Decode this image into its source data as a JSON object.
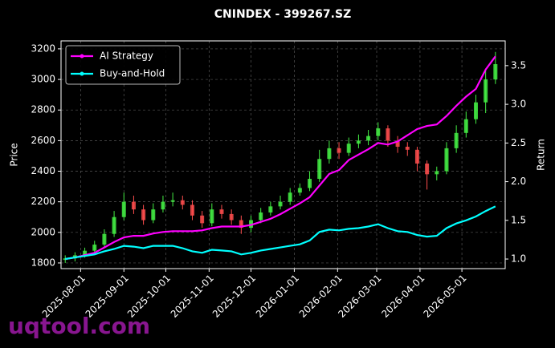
{
  "chart_data": {
    "type": "candlestick",
    "title": "CNINDEX - 399267.SZ",
    "ylabel": "Price",
    "y2label": "Return",
    "watermark": "uqtool.com",
    "x": [
      "2025-07-21",
      "2025-07-28",
      "2025-08-04",
      "2025-08-11",
      "2025-08-18",
      "2025-08-25",
      "2025-09-01",
      "2025-09-08",
      "2025-09-15",
      "2025-09-22",
      "2025-09-29",
      "2025-10-06",
      "2025-10-13",
      "2025-10-20",
      "2025-10-27",
      "2025-11-03",
      "2025-11-10",
      "2025-11-17",
      "2025-11-24",
      "2025-12-01",
      "2025-12-08",
      "2025-12-15",
      "2025-12-22",
      "2025-12-29",
      "2026-01-05",
      "2026-01-12",
      "2026-01-19",
      "2026-01-26",
      "2026-02-02",
      "2026-02-09",
      "2026-02-16",
      "2026-02-23",
      "2026-03-02",
      "2026-03-09",
      "2026-03-16",
      "2026-03-23",
      "2026-03-30",
      "2026-04-06",
      "2026-04-13",
      "2026-04-20",
      "2026-04-27",
      "2026-05-04",
      "2026-05-11",
      "2026-05-18",
      "2026-05-25"
    ],
    "open": [
      1820,
      1830,
      1850,
      1880,
      1920,
      1990,
      2100,
      2200,
      2150,
      2080,
      2150,
      2200,
      2210,
      2180,
      2110,
      2060,
      2150,
      2120,
      2080,
      2030,
      2080,
      2130,
      2170,
      2200,
      2260,
      2290,
      2350,
      2480,
      2550,
      2520,
      2580,
      2600,
      2630,
      2680,
      2600,
      2560,
      2540,
      2450,
      2380,
      2400,
      2550,
      2650,
      2740,
      2850,
      3000
    ],
    "high": [
      1850,
      1870,
      1900,
      1945,
      2020,
      2140,
      2260,
      2240,
      2180,
      2190,
      2240,
      2260,
      2240,
      2210,
      2140,
      2190,
      2180,
      2150,
      2110,
      2110,
      2160,
      2200,
      2240,
      2290,
      2320,
      2400,
      2540,
      2600,
      2590,
      2620,
      2640,
      2670,
      2720,
      2700,
      2630,
      2590,
      2560,
      2470,
      2430,
      2590,
      2700,
      2790,
      2900,
      3060,
      3180
    ],
    "low": [
      1800,
      1810,
      1835,
      1860,
      1900,
      1970,
      2080,
      2120,
      2050,
      2060,
      2130,
      2170,
      2150,
      2080,
      2030,
      2040,
      2090,
      2050,
      1990,
      2000,
      2060,
      2110,
      2150,
      2180,
      2240,
      2270,
      2330,
      2450,
      2480,
      2500,
      2550,
      2570,
      2600,
      2560,
      2520,
      2500,
      2400,
      2280,
      2340,
      2380,
      2520,
      2620,
      2710,
      2780,
      2970
    ],
    "close": [
      1830,
      1850,
      1880,
      1920,
      1990,
      2100,
      2200,
      2150,
      2080,
      2150,
      2200,
      2210,
      2180,
      2110,
      2060,
      2150,
      2120,
      2080,
      2030,
      2080,
      2130,
      2170,
      2200,
      2260,
      2290,
      2350,
      2480,
      2550,
      2520,
      2580,
      2600,
      2630,
      2680,
      2600,
      2560,
      2540,
      2450,
      2380,
      2400,
      2550,
      2650,
      2740,
      2850,
      3000,
      3100
    ],
    "up_color": "#44ee44",
    "down_color": "#ff4d4d",
    "series": [
      {
        "name": "AI Strategy",
        "color": "#ff00ff",
        "axis": "y2",
        "values": [
          1.0,
          1.02,
          1.05,
          1.08,
          1.15,
          1.22,
          1.28,
          1.3,
          1.3,
          1.33,
          1.35,
          1.36,
          1.36,
          1.36,
          1.37,
          1.4,
          1.42,
          1.42,
          1.42,
          1.44,
          1.48,
          1.52,
          1.58,
          1.65,
          1.72,
          1.8,
          1.95,
          2.1,
          2.15,
          2.28,
          2.35,
          2.42,
          2.5,
          2.48,
          2.52,
          2.6,
          2.68,
          2.72,
          2.74,
          2.85,
          2.98,
          3.1,
          3.2,
          3.45,
          3.62
        ]
      },
      {
        "name": "Buy-and-Hold",
        "color": "#00ffff",
        "axis": "y2",
        "values": [
          1.0,
          1.02,
          1.04,
          1.06,
          1.1,
          1.13,
          1.17,
          1.16,
          1.14,
          1.17,
          1.17,
          1.17,
          1.14,
          1.1,
          1.08,
          1.12,
          1.11,
          1.1,
          1.06,
          1.08,
          1.11,
          1.13,
          1.15,
          1.17,
          1.19,
          1.24,
          1.35,
          1.38,
          1.37,
          1.39,
          1.4,
          1.42,
          1.45,
          1.4,
          1.36,
          1.35,
          1.31,
          1.29,
          1.3,
          1.4,
          1.46,
          1.5,
          1.55,
          1.62,
          1.68
        ]
      }
    ],
    "xlim": [
      "2025-07-18",
      "2026-06-01"
    ],
    "xticks": [
      "2025-08-01",
      "2025-09-01",
      "2025-10-01",
      "2025-11-01",
      "2025-12-01",
      "2026-01-01",
      "2026-02-01",
      "2026-03-01",
      "2026-04-01",
      "2026-05-01"
    ],
    "ylim": [
      1763,
      3252
    ],
    "yticks": [
      1800,
      2000,
      2200,
      2400,
      2600,
      2800,
      3000,
      3200
    ],
    "y2lim": [
      0.876,
      3.82
    ],
    "y2ticks": [
      {
        "value": 1,
        "label": "1.0"
      },
      1.5,
      {
        "value": 2,
        "label": "2.0"
      },
      2.5,
      {
        "value": 3,
        "label": "3.0"
      },
      3.5
    ],
    "grid": true,
    "legend": "upper left"
  }
}
